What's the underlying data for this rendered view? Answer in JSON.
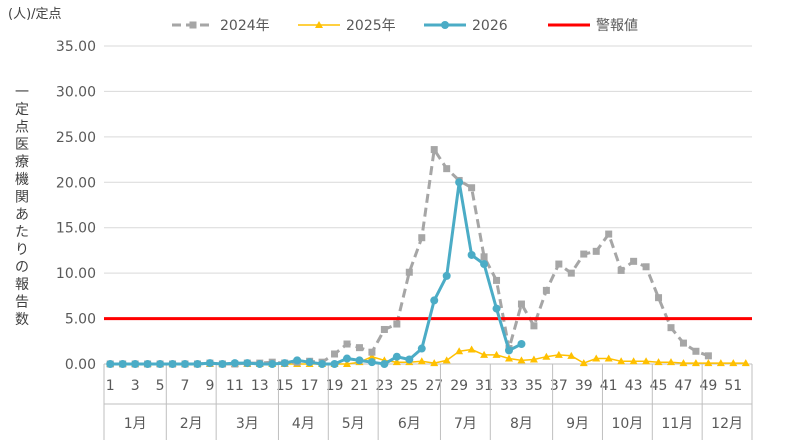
{
  "chart_data": {
    "type": "line",
    "unit_label": "(人)/定点",
    "ylabel": "一定点医療機関あたりの報告数",
    "ylim": [
      0,
      35
    ],
    "y_ticks": [
      "0.00",
      "5.00",
      "10.00",
      "15.00",
      "20.00",
      "25.00",
      "30.00",
      "35.00"
    ],
    "x_tick_labels": [
      "1",
      "3",
      "5",
      "7",
      "9",
      "11",
      "13",
      "15",
      "17",
      "19",
      "21",
      "23",
      "25",
      "27",
      "29",
      "31",
      "33",
      "35",
      "37",
      "39",
      "41",
      "43",
      "45",
      "47",
      "49",
      "51"
    ],
    "months": [
      {
        "label": "1月",
        "start": 1,
        "end": 5
      },
      {
        "label": "2月",
        "start": 6,
        "end": 9
      },
      {
        "label": "3月",
        "start": 10,
        "end": 14
      },
      {
        "label": "4月",
        "start": 15,
        "end": 18
      },
      {
        "label": "5月",
        "start": 19,
        "end": 22
      },
      {
        "label": "6月",
        "start": 23,
        "end": 27
      },
      {
        "label": "7月",
        "start": 28,
        "end": 31
      },
      {
        "label": "8月",
        "start": 32,
        "end": 36
      },
      {
        "label": "9月",
        "start": 37,
        "end": 40
      },
      {
        "label": "10月",
        "start": 41,
        "end": 44
      },
      {
        "label": "11月",
        "start": 45,
        "end": 48
      },
      {
        "label": "12月",
        "start": 49,
        "end": 52
      }
    ],
    "grid": true,
    "legend_position": "top",
    "series": [
      {
        "name": "2024年",
        "color": "#a6a6a6",
        "marker": "square",
        "dashed": true,
        "values": [
          0,
          0,
          0,
          0,
          0,
          0,
          0,
          0,
          0.1,
          0,
          0,
          0.1,
          0.1,
          0.2,
          0.1,
          0.2,
          0.3,
          0.2,
          1.1,
          2.2,
          1.8,
          1.3,
          3.8,
          4.4,
          10.1,
          13.9,
          23.6,
          21.5,
          20.2,
          19.4,
          11.8,
          9.2,
          1.7,
          6.6,
          4.2,
          8.1,
          11.0,
          10.0,
          12.1,
          12.4,
          14.3,
          10.3,
          11.3,
          10.7,
          7.3,
          4.0,
          2.3,
          1.4,
          0.9
        ]
      },
      {
        "name": "2025年",
        "color": "#ffc000",
        "marker": "triangle",
        "dashed": false,
        "values": [
          0,
          0,
          0,
          0,
          0,
          0,
          0,
          0,
          0,
          0,
          0,
          0,
          0,
          0,
          0,
          0,
          0,
          0,
          0,
          0,
          0.2,
          0.8,
          0.4,
          0.2,
          0.2,
          0.3,
          0.1,
          0.4,
          1.4,
          1.6,
          1.0,
          1.0,
          0.6,
          0.4,
          0.5,
          0.8,
          1.0,
          0.9,
          0.1,
          0.6,
          0.6,
          0.3,
          0.3,
          0.3,
          0.2,
          0.2,
          0.1,
          0.1,
          0.1,
          0.1,
          0.1,
          0.1
        ]
      },
      {
        "name": "2026",
        "color": "#4bacc6",
        "marker": "circle",
        "dashed": false,
        "values": [
          0,
          0,
          0,
          0,
          0,
          0,
          0,
          0,
          0.1,
          0,
          0.1,
          0.1,
          0,
          0,
          0.1,
          0.4,
          0.2,
          0,
          0,
          0.6,
          0.4,
          0.2,
          0,
          0.8,
          0.5,
          1.7,
          7.0,
          9.7,
          20.0,
          12.0,
          11.0,
          6.1,
          1.5,
          2.2
        ]
      },
      {
        "name": "警報値",
        "color": "#ff0000",
        "marker": "none",
        "dashed": false,
        "constant": 5
      }
    ]
  }
}
